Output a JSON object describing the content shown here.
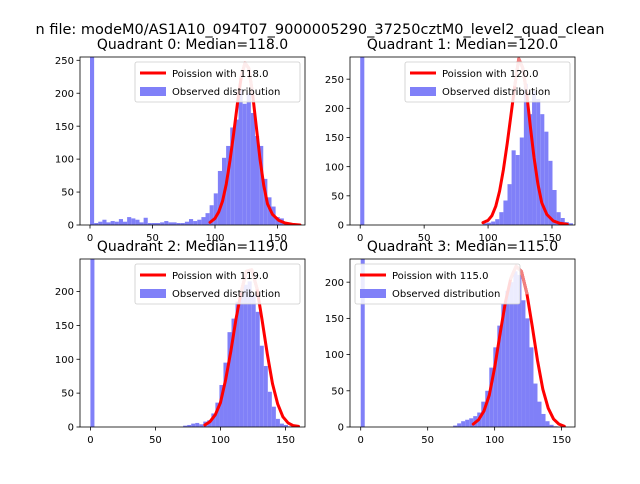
{
  "suptitle": "n file: modeM0/AS1A10_094T07_9000005290_37250cztM0_level2_quad_clean",
  "colors": {
    "hist": "#8080f8",
    "fit": "#ff0000",
    "fit_light": "#f08080"
  },
  "chart_data": [
    {
      "type": "histogram+line",
      "title": "Quadrant 0: Median=118.0",
      "median": 118.0,
      "xlim": [
        -8,
        172
      ],
      "ylim": [
        0,
        255
      ],
      "xticks": [
        0,
        50,
        100,
        150
      ],
      "yticks": [
        0,
        50,
        100,
        150,
        200,
        250
      ],
      "legend": {
        "placement": "upper-right",
        "line_label": "Poission with 118.0",
        "bar_label": "Observed distribution"
      },
      "bins": {
        "start": 0,
        "width": 3.3
      },
      "counts": [
        255,
        3,
        5,
        8,
        4,
        6,
        5,
        9,
        5,
        12,
        10,
        8,
        4,
        11,
        3,
        3,
        3,
        4,
        6,
        4,
        4,
        3,
        3,
        5,
        9,
        6,
        8,
        12,
        18,
        30,
        48,
        82,
        102,
        120,
        148,
        160,
        206,
        184,
        200,
        170,
        135,
        120,
        70,
        42,
        28,
        12,
        10,
        4,
        3,
        2,
        1
      ],
      "fit_x": [
        96,
        100,
        103,
        106,
        109,
        112,
        115,
        118,
        121,
        124,
        127,
        130,
        133,
        136,
        139,
        142,
        146,
        151,
        156,
        162,
        168
      ],
      "fit_y": [
        4,
        10,
        20,
        36,
        62,
        98,
        140,
        185,
        225,
        246,
        238,
        200,
        150,
        100,
        60,
        32,
        16,
        7,
        3,
        1,
        0
      ]
    },
    {
      "type": "histogram+line",
      "title": "Quadrant 1: Median=120.0",
      "median": 120.0,
      "xlim": [
        -8,
        168
      ],
      "ylim": [
        0,
        288
      ],
      "xticks": [
        0,
        50,
        100,
        150
      ],
      "yticks": [
        0,
        50,
        100,
        150,
        200,
        250
      ],
      "legend": {
        "placement": "upper-right",
        "line_label": "Poission with 120.0",
        "bar_label": "Observed distribution"
      },
      "bins": {
        "start": 0,
        "width": 3.2
      },
      "counts": [
        288,
        0,
        0,
        0,
        0,
        0,
        0,
        0,
        0,
        0,
        0,
        0,
        0,
        0,
        0,
        0,
        0,
        0,
        0,
        0,
        0,
        0,
        0,
        0,
        0,
        0,
        0,
        0,
        0,
        0,
        3,
        4,
        6,
        10,
        22,
        42,
        70,
        128,
        120,
        150,
        242,
        190,
        230,
        216,
        190,
        160,
        110,
        60,
        22,
        12,
        5,
        3,
        0
      ],
      "fit_x": [
        96,
        100,
        103,
        106,
        109,
        112,
        115,
        118,
        121,
        124,
        127,
        130,
        133,
        136,
        139,
        142,
        146,
        151,
        156,
        162
      ],
      "fit_y": [
        4,
        8,
        16,
        32,
        58,
        95,
        140,
        190,
        240,
        285,
        270,
        230,
        170,
        115,
        70,
        38,
        18,
        7,
        3,
        1
      ]
    },
    {
      "type": "histogram+line",
      "title": "Quadrant 2: Median=119.0",
      "median": 119.0,
      "xlim": [
        -8,
        165
      ],
      "ylim": [
        0,
        248
      ],
      "xticks": [
        0,
        50,
        100,
        150
      ],
      "yticks": [
        0,
        50,
        100,
        150,
        200
      ],
      "legend": {
        "placement": "upper-right",
        "line_label": "Poission with 119.0",
        "bar_label": "Observed distribution"
      },
      "bins": {
        "start": 0,
        "width": 3.1
      },
      "counts": [
        248,
        0,
        0,
        0,
        0,
        0,
        0,
        0,
        0,
        0,
        0,
        0,
        0,
        0,
        0,
        0,
        0,
        0,
        0,
        0,
        0,
        0,
        0,
        2,
        3,
        5,
        6,
        4,
        8,
        10,
        20,
        36,
        62,
        95,
        140,
        160,
        185,
        200,
        210,
        215,
        195,
        170,
        120,
        90,
        52,
        30,
        12,
        5,
        3,
        1
      ],
      "fit_x": [
        88,
        92,
        96,
        100,
        104,
        108,
        112,
        116,
        120,
        124,
        128,
        132,
        136,
        140,
        144,
        148,
        152,
        156,
        160
      ],
      "fit_y": [
        3,
        8,
        18,
        36,
        70,
        112,
        160,
        200,
        230,
        232,
        205,
        158,
        108,
        64,
        34,
        15,
        6,
        2,
        1
      ]
    },
    {
      "type": "histogram+line",
      "title": "Quadrant 3: Median=115.0",
      "median": 115.0,
      "xlim": [
        -8,
        160
      ],
      "ylim": [
        0,
        232
      ],
      "xticks": [
        0,
        50,
        100,
        150
      ],
      "yticks": [
        0,
        50,
        100,
        150,
        200
      ],
      "legend": {
        "placement": "upper-left",
        "line_label": "Poission with 115.0",
        "bar_label": "Observed distribution"
      },
      "bins": {
        "start": 0,
        "width": 3.0
      },
      "counts": [
        232,
        0,
        0,
        0,
        0,
        0,
        0,
        0,
        0,
        0,
        0,
        0,
        0,
        0,
        0,
        0,
        0,
        0,
        0,
        0,
        0,
        0,
        0,
        2,
        5,
        8,
        10,
        12,
        15,
        20,
        35,
        50,
        82,
        110,
        140,
        170,
        188,
        200,
        215,
        210,
        175,
        150,
        110,
        60,
        35,
        18,
        8,
        3,
        1
      ],
      "fit_x": [
        84,
        88,
        92,
        96,
        100,
        104,
        108,
        112,
        116,
        120,
        124,
        128,
        132,
        136,
        140,
        144,
        148,
        152
      ],
      "fit_y": [
        4,
        10,
        22,
        44,
        82,
        128,
        172,
        205,
        222,
        215,
        185,
        140,
        92,
        52,
        26,
        11,
        4,
        1
      ]
    }
  ]
}
